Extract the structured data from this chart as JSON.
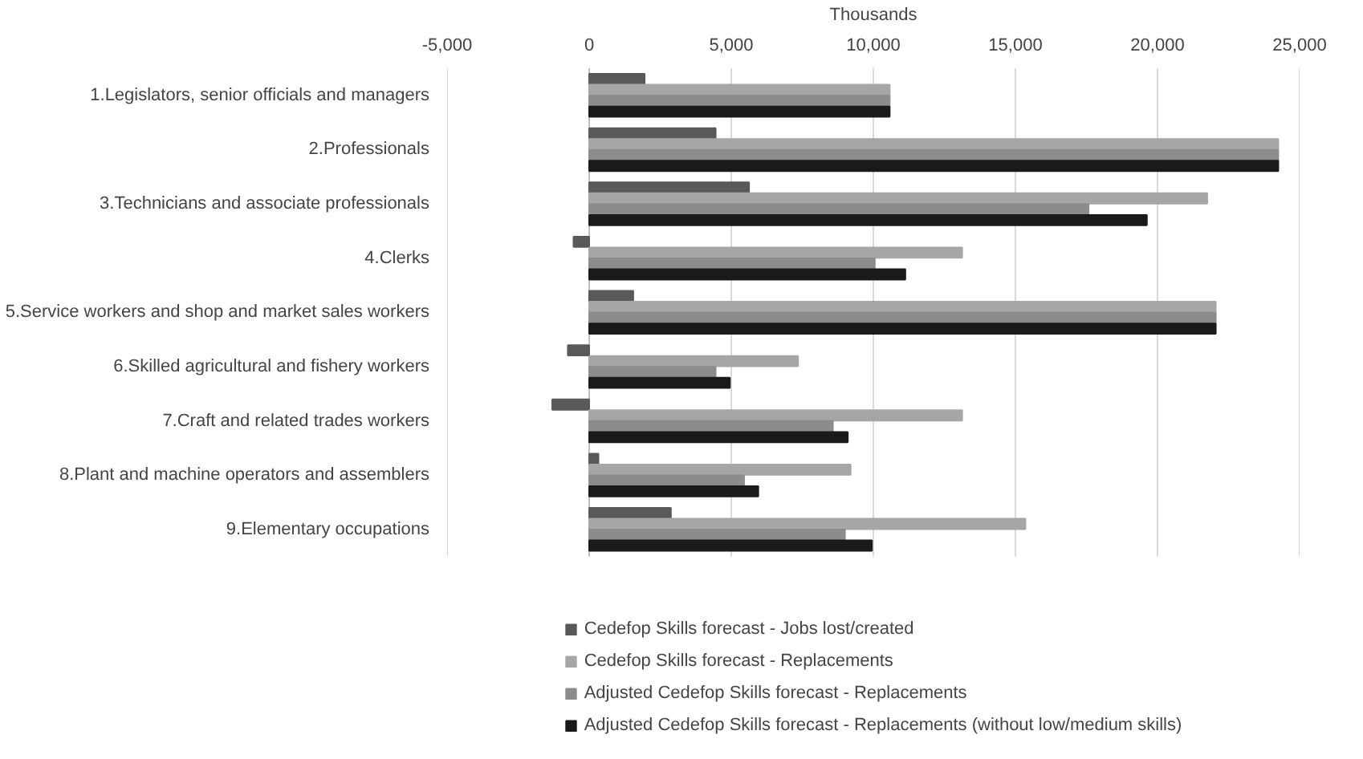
{
  "chart_data": {
    "type": "bar",
    "orientation": "horizontal",
    "xlabel": "Thousands",
    "categories": [
      "1.Legislators, senior officials and managers",
      "2.Professionals",
      "3.Technicians and associate professionals",
      "4.Clerks",
      "5.Service workers and shop and market sales workers",
      "6.Skilled agricultural and fishery workers",
      "7.Craft and related trades workers",
      "8.Plant and machine operators and assemblers",
      "9.Elementary occupations"
    ],
    "series": [
      {
        "name": "Cedefop Skills forecast - Jobs lost/created",
        "color": "#595959",
        "values": [
          1950,
          4450,
          5625,
          -550,
          1550,
          -750,
          -1300,
          325,
          2875
        ]
      },
      {
        "name": "Cedefop Skills forecast - Replacements",
        "color": "#a6a6a6",
        "values": [
          10575,
          24250,
          21750,
          13125,
          22050,
          7350,
          13125,
          9200,
          15350
        ]
      },
      {
        "name": "Adjusted Cedefop Skills forecast - Replacements",
        "color": "#8c8c8c",
        "values": [
          10575,
          24250,
          17575,
          10050,
          22050,
          4450,
          8575,
          5450,
          9000
        ]
      },
      {
        "name": "Adjusted Cedefop Skills forecast - Replacements (without low/medium skills)",
        "color": "#1a1a1a",
        "values": [
          10575,
          24250,
          19625,
          11125,
          22050,
          4950,
          9100,
          5950,
          9950
        ]
      }
    ],
    "xlim": [
      -5000,
      25000
    ],
    "xticks": [
      {
        "value": -5000,
        "label": "-5,000"
      },
      0,
      {
        "value": 5000,
        "label": "5,000"
      },
      {
        "value": 10000,
        "label": "10,000"
      },
      {
        "value": 15000,
        "label": "15,000"
      },
      {
        "value": 20000,
        "label": "20,000"
      },
      {
        "value": 25000,
        "label": "25,000"
      }
    ],
    "grid": "x",
    "legend": "bottom"
  }
}
